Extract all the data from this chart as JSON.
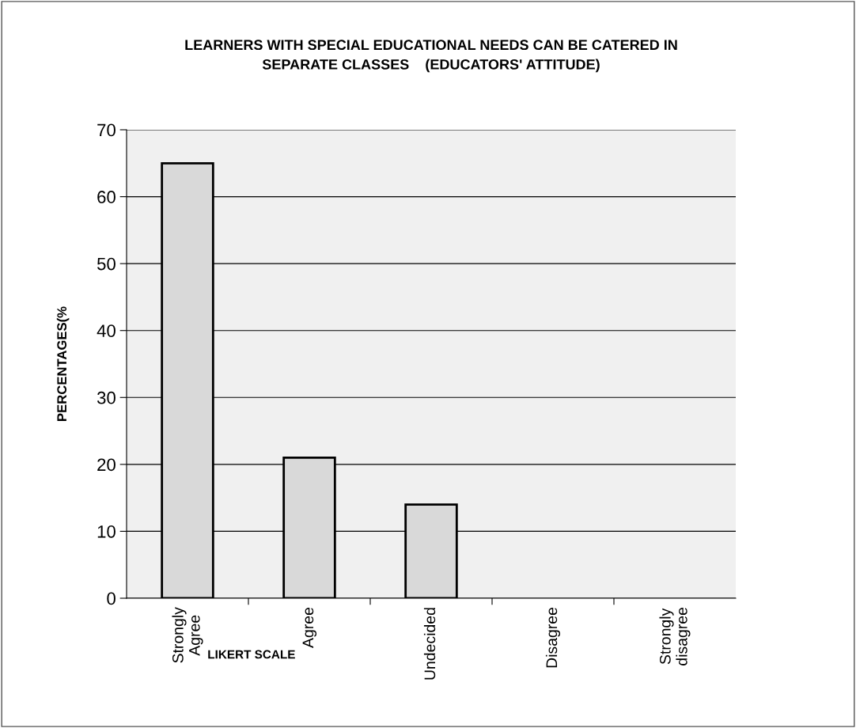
{
  "chart_data": {
    "type": "bar",
    "title": "LEARNERS WITH SPECIAL EDUCATIONAL NEEDS CAN BE CATERED IN\nSEPARATE CLASSES    (EDUCATORS' ATTITUDE)",
    "xlabel": "LIKERT SCALE",
    "ylabel": "PERCENTAGES(%",
    "categories": [
      "Strongly\nAgree",
      "Agree",
      "Undecided",
      "Disagree",
      "Strongly\ndisagree"
    ],
    "values": [
      65,
      21,
      14,
      0,
      0
    ],
    "color": "#d9d9d9",
    "ylim": [
      0,
      70
    ],
    "yticks": [
      0,
      10,
      20,
      30,
      40,
      50,
      60,
      70
    ],
    "grid": "y",
    "legend": false
  }
}
